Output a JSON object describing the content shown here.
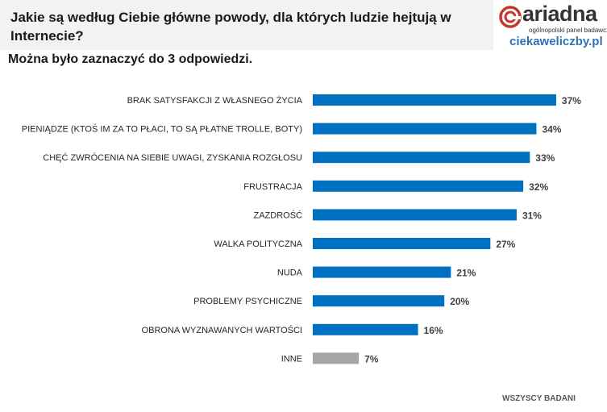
{
  "header": {
    "title": "Jakie są według Ciebie główne powody, dla których ludzie hejtują w Internecie?",
    "subtitle": "Można było zaznaczyć do 3 odpowiedzi."
  },
  "logo": {
    "brand": "ariadna",
    "tagline": "ogólnopolski panel badawczy",
    "site": "ciekaweliczby.pl"
  },
  "footer": {
    "note": "WSZYSCY BADANI"
  },
  "colors": {
    "primary_bar": "#0070c0",
    "other_bar": "#a6a6a6",
    "logo_red": "#c0392b",
    "site_blue": "#2e74b5"
  },
  "chart_data": {
    "type": "bar",
    "orientation": "horizontal",
    "categories": [
      "BRAK SATYSFAKCJI Z WŁASNEGO ŻYCIA",
      "PIENIĄDZE (KTOŚ IM ZA TO PŁACI, TO SĄ PŁATNE TROLLE, BOTY)",
      "CHĘĆ ZWRÓCENIA NA SIEBIE UWAGI, ZYSKANIA ROZGŁOSU",
      "FRUSTRACJA",
      "ZAZDROŚĆ",
      "WALKA POLITYCZNA",
      "NUDA",
      "PROBLEMY PSYCHICZNE",
      "OBRONA WYZNAWANYCH WARTOŚCI",
      "INNE"
    ],
    "values": [
      37,
      34,
      33,
      32,
      31,
      27,
      21,
      20,
      16,
      7
    ],
    "labels": [
      "37%",
      "34%",
      "33%",
      "32%",
      "31%",
      "27%",
      "21%",
      "20%",
      "16%",
      "7%"
    ],
    "unit": "%",
    "grid": false,
    "legend": "none"
  }
}
